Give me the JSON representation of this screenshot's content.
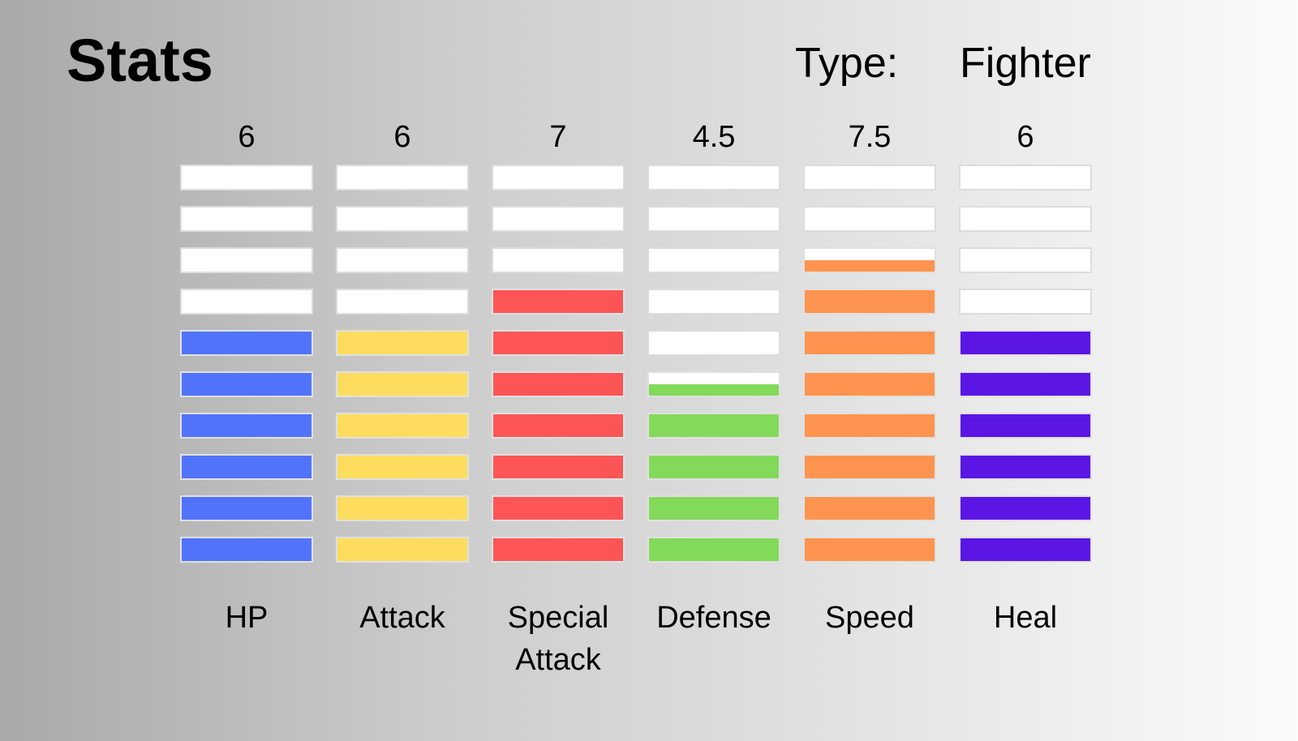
{
  "header": {
    "title": "Stats",
    "type_label": "Type:",
    "type_value": "Fighter"
  },
  "chart_data": {
    "type": "bar",
    "categories": [
      "HP",
      "Attack",
      "Special Attack",
      "Defense",
      "Speed",
      "Heal"
    ],
    "display_labels": [
      "6",
      "6",
      "7",
      "4.5",
      "7.5",
      "6"
    ],
    "values": [
      6,
      6,
      7,
      4.5,
      7.5,
      6
    ],
    "ylim": [
      0,
      10
    ],
    "segments": 10,
    "colors": [
      "#5173fb",
      "#fedd5e",
      "#fd5556",
      "#83d95a",
      "#fe944f",
      "#5b15e5"
    ],
    "empty_color": "#ffffff"
  }
}
